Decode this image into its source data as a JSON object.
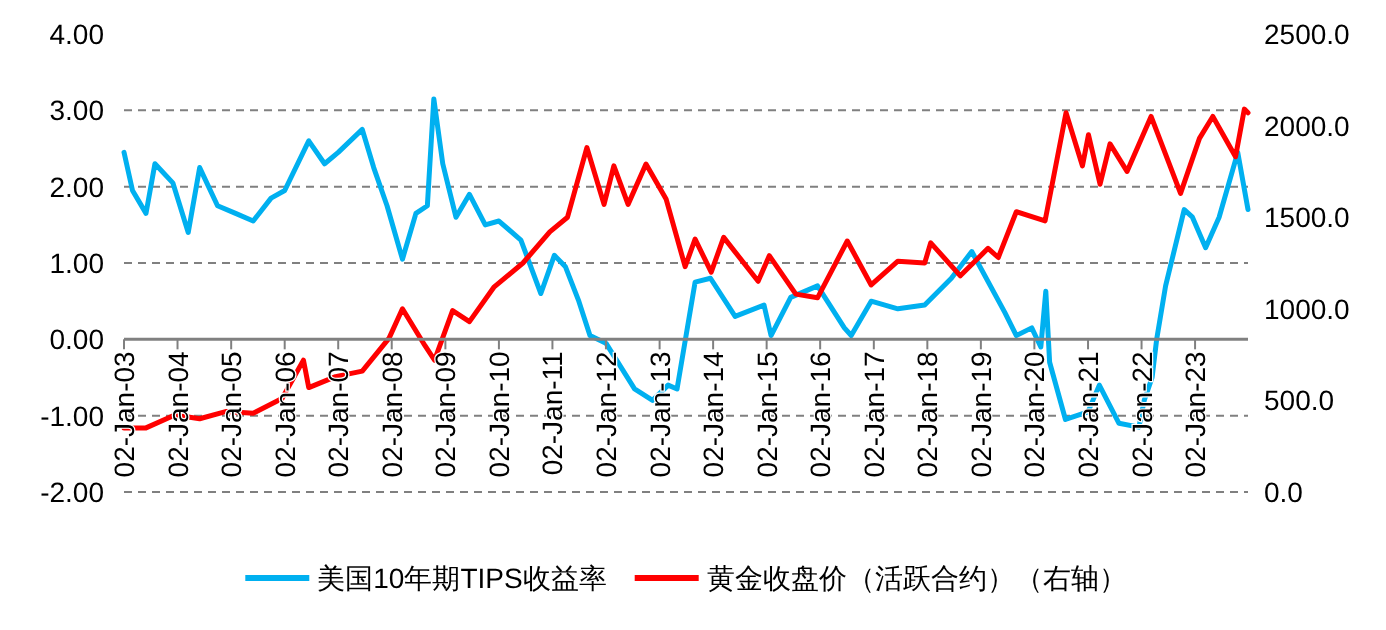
{
  "chart_data": {
    "type": "line",
    "grid": "y",
    "legend": "bottom",
    "xlim": [
      "2003-01-02",
      "2023-12-29"
    ],
    "xticks": [
      {
        "value": "2003-01-02",
        "label": "02-Jan-03"
      },
      {
        "value": "2004-01-02",
        "label": "02-Jan-04"
      },
      {
        "value": "2005-01-02",
        "label": "02-Jan-05"
      },
      {
        "value": "2006-01-02",
        "label": "02-Jan-06"
      },
      {
        "value": "2007-01-02",
        "label": "02-Jan-07"
      },
      {
        "value": "2008-01-02",
        "label": "02-Jan-08"
      },
      {
        "value": "2009-01-02",
        "label": "02-Jan-09"
      },
      {
        "value": "2010-01-02",
        "label": "02-Jan-10"
      },
      {
        "value": "2011-01-02",
        "label": "02-Jan-11"
      },
      {
        "value": "2012-01-02",
        "label": "02-Jan-12"
      },
      {
        "value": "2013-01-02",
        "label": "02-Jan-13"
      },
      {
        "value": "2014-01-02",
        "label": "02-Jan-14"
      },
      {
        "value": "2015-01-02",
        "label": "02-Jan-15"
      },
      {
        "value": "2016-01-02",
        "label": "02-Jan-16"
      },
      {
        "value": "2017-01-02",
        "label": "02-Jan-17"
      },
      {
        "value": "2018-01-02",
        "label": "02-Jan-18"
      },
      {
        "value": "2019-01-02",
        "label": "02-Jan-19"
      },
      {
        "value": "2020-01-02",
        "label": "02-Jan-20"
      },
      {
        "value": "2021-01-02",
        "label": "02-Jan-21"
      },
      {
        "value": "2022-01-02",
        "label": "02-Jan-22"
      },
      {
        "value": "2023-01-02",
        "label": "02-Jan-23"
      }
    ],
    "ylim": [
      -2,
      4
    ],
    "yticks": [
      {
        "value": -2,
        "label": "-2.00"
      },
      {
        "value": -1,
        "label": "-1.00"
      },
      {
        "value": 0,
        "label": "0.00"
      },
      {
        "value": 1,
        "label": "1.00"
      },
      {
        "value": 2,
        "label": "2.00"
      },
      {
        "value": 3,
        "label": "3.00"
      },
      {
        "value": 4,
        "label": "4.00"
      }
    ],
    "y2lim": [
      0,
      2500
    ],
    "y2ticks": [
      {
        "value": 0,
        "label": "0.0"
      },
      {
        "value": 500,
        "label": "500.0"
      },
      {
        "value": 1000,
        "label": "1000.0"
      },
      {
        "value": 1500,
        "label": "1500.0"
      },
      {
        "value": 2000,
        "label": "2000.0"
      },
      {
        "value": 2500,
        "label": "2500.0"
      }
    ],
    "series": [
      {
        "name": "美国10年期TIPS收益率",
        "color": "#00b0f0",
        "x": [
          "2003-01-02",
          "2003-03-01",
          "2003-06-01",
          "2003-08-01",
          "2003-12-01",
          "2004-03-15",
          "2004-06-01",
          "2004-10-01",
          "2005-02-01",
          "2005-06-01",
          "2005-10-01",
          "2006-01-02",
          "2006-06-15",
          "2006-10-01",
          "2007-01-02",
          "2007-06-15",
          "2007-09-01",
          "2007-12-01",
          "2008-03-15",
          "2008-06-15",
          "2008-09-01",
          "2008-10-15",
          "2008-12-15",
          "2009-03-15",
          "2009-06-15",
          "2009-10-01",
          "2010-01-02",
          "2010-06-01",
          "2010-10-15",
          "2011-01-15",
          "2011-04-01",
          "2011-07-01",
          "2011-09-15",
          "2012-01-02",
          "2012-07-15",
          "2012-11-15",
          "2013-03-01",
          "2013-05-01",
          "2013-09-01",
          "2013-12-15",
          "2014-06-01",
          "2014-12-15",
          "2015-02-01",
          "2015-06-15",
          "2015-12-15",
          "2016-06-15",
          "2016-08-01",
          "2016-12-15",
          "2017-06-15",
          "2017-12-15",
          "2018-06-15",
          "2018-11-01",
          "2019-06-15",
          "2019-09-01",
          "2019-12-15",
          "2020-02-15",
          "2020-03-20",
          "2020-04-15",
          "2020-08-01",
          "2021-01-02",
          "2021-03-20",
          "2021-08-01",
          "2021-12-15",
          "2022-01-20",
          "2022-03-15",
          "2022-04-15",
          "2022-06-15",
          "2022-10-20",
          "2022-12-15",
          "2023-03-15",
          "2023-06-15",
          "2023-10-20",
          "2023-12-29"
        ],
        "values": [
          2.45,
          1.95,
          1.65,
          2.3,
          2.05,
          1.4,
          2.25,
          1.75,
          1.65,
          1.55,
          1.85,
          1.95,
          2.6,
          2.3,
          2.45,
          2.75,
          2.25,
          1.75,
          1.05,
          1.65,
          1.75,
          3.15,
          2.3,
          1.6,
          1.9,
          1.5,
          1.55,
          1.3,
          0.6,
          1.1,
          0.95,
          0.5,
          0.05,
          -0.05,
          -0.65,
          -0.8,
          -0.6,
          -0.65,
          0.75,
          0.8,
          0.3,
          0.45,
          0.05,
          0.55,
          0.7,
          0.15,
          0.05,
          0.5,
          0.4,
          0.45,
          0.8,
          1.15,
          0.35,
          0.05,
          0.15,
          -0.1,
          0.63,
          -0.3,
          -1.05,
          -0.95,
          -0.6,
          -1.1,
          -1.15,
          -0.8,
          -0.5,
          0.0,
          0.7,
          1.7,
          1.6,
          1.2,
          1.6,
          2.45,
          1.7
        ]
      },
      {
        "name": "黄金收盘价（活跃合约）（右轴）",
        "axis": "y2",
        "color": "#ff0000",
        "x": [
          "2003-01-02",
          "2003-06-01",
          "2003-12-15",
          "2004-06-01",
          "2004-12-01",
          "2005-06-01",
          "2005-12-15",
          "2006-05-10",
          "2006-06-15",
          "2006-12-15",
          "2007-06-15",
          "2007-12-15",
          "2008-03-15",
          "2008-08-15",
          "2008-10-20",
          "2009-02-20",
          "2009-06-15",
          "2009-12-01",
          "2010-06-15",
          "2010-12-15",
          "2011-04-15",
          "2011-08-25",
          "2011-12-20",
          "2012-02-25",
          "2012-06-01",
          "2012-10-01",
          "2013-02-15",
          "2013-06-25",
          "2013-09-01",
          "2013-12-20",
          "2014-03-15",
          "2014-11-05",
          "2015-01-20",
          "2015-07-20",
          "2015-12-15",
          "2016-07-05",
          "2016-12-15",
          "2017-06-15",
          "2017-12-15",
          "2018-01-25",
          "2018-08-15",
          "2019-02-20",
          "2019-05-01",
          "2019-09-01",
          "2020-03-15",
          "2020-08-05",
          "2020-11-25",
          "2021-01-05",
          "2021-03-25",
          "2021-06-01",
          "2021-09-25",
          "2022-03-08",
          "2022-09-25",
          "2023-02-01",
          "2023-05-03",
          "2023-10-05",
          "2023-12-04",
          "2023-12-29"
        ],
        "values": [
          350,
          350,
          420,
          400,
          440,
          430,
          510,
          720,
          570,
          630,
          660,
          840,
          1000,
          800,
          720,
          990,
          930,
          1120,
          1250,
          1420,
          1500,
          1880,
          1570,
          1780,
          1570,
          1790,
          1600,
          1230,
          1380,
          1200,
          1390,
          1150,
          1290,
          1080,
          1060,
          1370,
          1130,
          1260,
          1250,
          1360,
          1180,
          1330,
          1280,
          1530,
          1480,
          2070,
          1780,
          1950,
          1680,
          1900,
          1750,
          2050,
          1630,
          1930,
          2050,
          1830,
          2090,
          2070
        ]
      }
    ]
  }
}
